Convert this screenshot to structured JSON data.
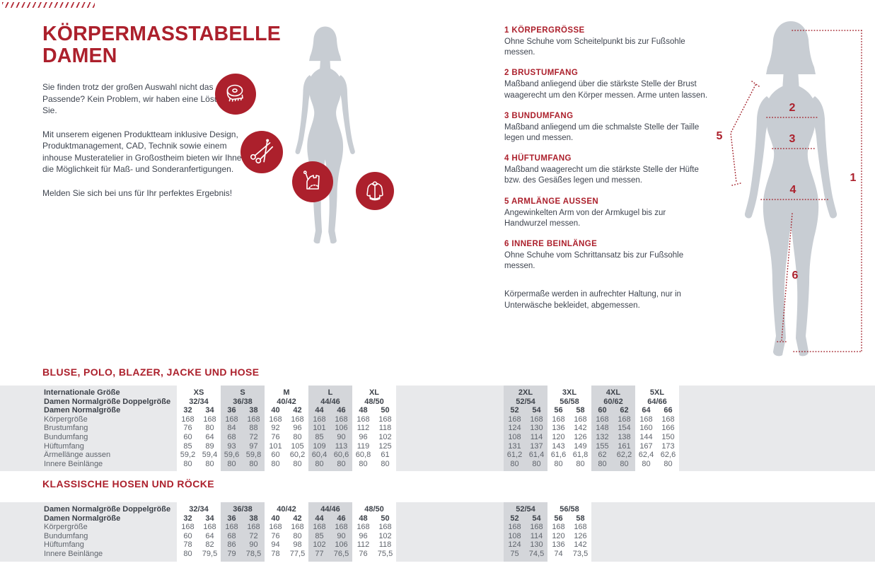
{
  "page": {
    "accent": "#ac202c",
    "band_gray": "#e8e9eb",
    "column_shade_gray": "#d4d6da",
    "silhouette_gray": "#c8cdd3"
  },
  "intro": {
    "title_line1": "KÖRPERMASSTABELLE",
    "title_line2": "DAMEN",
    "paragraphs": [
      "Sie finden trotz der großen Auswahl nicht das Passende? Kein Problem, wir haben eine Lösung für Sie.",
      "Mit unserem eigenen Produktteam inklusive Design, Produktmanagement, CAD, Technik sowie einem inhouse Musteratelier in Großostheim bieten wir Ihnen die Möglichkeit für Maß- und Sonderanfertigungen.",
      "Melden Sie sich bei uns für Ihr perfektes Ergebnis!"
    ]
  },
  "badges": [
    "measuring-tape-icon",
    "scissors-icon",
    "sewing-pattern-icon",
    "jacket-icon"
  ],
  "instructions": {
    "items": [
      {
        "num": "1",
        "title": "KÖRPERGRÖSSE",
        "text": "Ohne Schuhe vom Scheitelpunkt bis zur Fußsohle messen."
      },
      {
        "num": "2",
        "title": "BRUSTUMFANG",
        "text": "Maßband anliegend über die stärkste Stelle der Brust waagerecht um den Körper messen. Arme unten lassen."
      },
      {
        "num": "3",
        "title": "BUNDUMFANG",
        "text": "Maßband anliegend um die schmalste Stelle der Taille legen und messen."
      },
      {
        "num": "4",
        "title": "HÜFTUMFANG",
        "text": "Maßband waagerecht um die stärkste Stelle der Hüfte bzw. des Gesäßes legen und messen."
      },
      {
        "num": "5",
        "title": "ARMLÄNGE AUSSEN",
        "text": "Angewinkelten Arm von der Armkugel bis zur Handwurzel messen."
      },
      {
        "num": "6",
        "title": "INNERE BEINLÄNGE",
        "text": "Ohne Schuhe vom Schrittansatz bis zur Fußsohle messen."
      }
    ],
    "note": "Körpermaße werden in aufrechter Haltung, nur in Unterwäsche bekleidet, abgemessen."
  },
  "measure_figure": {
    "labels": [
      "1",
      "2",
      "3",
      "4",
      "5",
      "6"
    ]
  },
  "tables": [
    {
      "title": "BLUSE, POLO, BLAZER, JACKE UND HOSE",
      "int_label": "Internationale Größe",
      "double_label": "Damen Normalgröße Doppelgröße",
      "single_label": "Damen Normalgröße",
      "groups": [
        {
          "int": "XS",
          "double": "32/34",
          "sizes": [
            "32",
            "34"
          ],
          "shade": false
        },
        {
          "int": "S",
          "double": "36/38",
          "sizes": [
            "36",
            "38"
          ],
          "shade": true
        },
        {
          "int": "M",
          "double": "40/42",
          "sizes": [
            "40",
            "42"
          ],
          "shade": false
        },
        {
          "int": "L",
          "double": "44/46",
          "sizes": [
            "44",
            "46"
          ],
          "shade": true
        },
        {
          "int": "XL",
          "double": "48/50",
          "sizes": [
            "48",
            "50"
          ],
          "shade": false
        },
        {
          "gap": true
        },
        {
          "int": "2XL",
          "double": "52/54",
          "sizes": [
            "52",
            "54"
          ],
          "shade": true
        },
        {
          "int": "3XL",
          "double": "56/58",
          "sizes": [
            "56",
            "58"
          ],
          "shade": false
        },
        {
          "int": "4XL",
          "double": "60/62",
          "sizes": [
            "60",
            "62"
          ],
          "shade": true
        },
        {
          "int": "5XL",
          "double": "64/66",
          "sizes": [
            "64",
            "66"
          ],
          "shade": false
        }
      ],
      "rows": [
        {
          "label": "Körpergröße",
          "values": [
            "168",
            "168",
            "168",
            "168",
            "168",
            "168",
            "168",
            "168",
            "168",
            "168",
            "168",
            "168",
            "168",
            "168",
            "168",
            "168",
            "168",
            "168"
          ]
        },
        {
          "label": "Brustumfang",
          "values": [
            "76",
            "80",
            "84",
            "88",
            "92",
            "96",
            "101",
            "106",
            "112",
            "118",
            "124",
            "130",
            "136",
            "142",
            "148",
            "154",
            "160",
            "166"
          ]
        },
        {
          "label": "Bundumfang",
          "values": [
            "60",
            "64",
            "68",
            "72",
            "76",
            "80",
            "85",
            "90",
            "96",
            "102",
            "108",
            "114",
            "120",
            "126",
            "132",
            "138",
            "144",
            "150"
          ]
        },
        {
          "label": "Hüftumfang",
          "values": [
            "85",
            "89",
            "93",
            "97",
            "101",
            "105",
            "109",
            "113",
            "119",
            "125",
            "131",
            "137",
            "143",
            "149",
            "155",
            "161",
            "167",
            "173"
          ]
        },
        {
          "label": "Ärmellänge aussen",
          "values": [
            "59,2",
            "59,4",
            "59,6",
            "59,8",
            "60",
            "60,2",
            "60,4",
            "60,6",
            "60,8",
            "61",
            "61,2",
            "61,4",
            "61,6",
            "61,8",
            "62",
            "62,2",
            "62,4",
            "62,6"
          ]
        },
        {
          "label": "Innere Beinlänge",
          "values": [
            "80",
            "80",
            "80",
            "80",
            "80",
            "80",
            "80",
            "80",
            "80",
            "80",
            "80",
            "80",
            "80",
            "80",
            "80",
            "80",
            "80",
            "80"
          ]
        }
      ]
    },
    {
      "title": "KLASSISCHE HOSEN UND RÖCKE",
      "double_label": "Damen Normalgröße Doppelgröße",
      "single_label": "Damen Normalgröße",
      "groups": [
        {
          "double": "32/34",
          "sizes": [
            "32",
            "34"
          ],
          "shade": false
        },
        {
          "double": "36/38",
          "sizes": [
            "36",
            "38"
          ],
          "shade": true
        },
        {
          "double": "40/42",
          "sizes": [
            "40",
            "42"
          ],
          "shade": false
        },
        {
          "double": "44/46",
          "sizes": [
            "44",
            "46"
          ],
          "shade": true
        },
        {
          "double": "48/50",
          "sizes": [
            "48",
            "50"
          ],
          "shade": false
        },
        {
          "gap": true
        },
        {
          "double": "52/54",
          "sizes": [
            "52",
            "54"
          ],
          "shade": true
        },
        {
          "double": "56/58",
          "sizes": [
            "56",
            "58"
          ],
          "shade": false
        }
      ],
      "rows": [
        {
          "label": "Körpergröße",
          "values": [
            "168",
            "168",
            "168",
            "168",
            "168",
            "168",
            "168",
            "168",
            "168",
            "168",
            "168",
            "168",
            "168",
            "168"
          ]
        },
        {
          "label": "Bundumfang",
          "values": [
            "60",
            "64",
            "68",
            "72",
            "76",
            "80",
            "85",
            "90",
            "96",
            "102",
            "108",
            "114",
            "120",
            "126"
          ]
        },
        {
          "label": "Hüftumfang",
          "values": [
            "78",
            "82",
            "86",
            "90",
            "94",
            "98",
            "102",
            "106",
            "112",
            "118",
            "124",
            "130",
            "136",
            "142"
          ]
        },
        {
          "label": "Innere Beinlänge",
          "values": [
            "80",
            "79,5",
            "79",
            "78,5",
            "78",
            "77,5",
            "77",
            "76,5",
            "76",
            "75,5",
            "75",
            "74,5",
            "74",
            "73,5"
          ]
        }
      ]
    }
  ]
}
